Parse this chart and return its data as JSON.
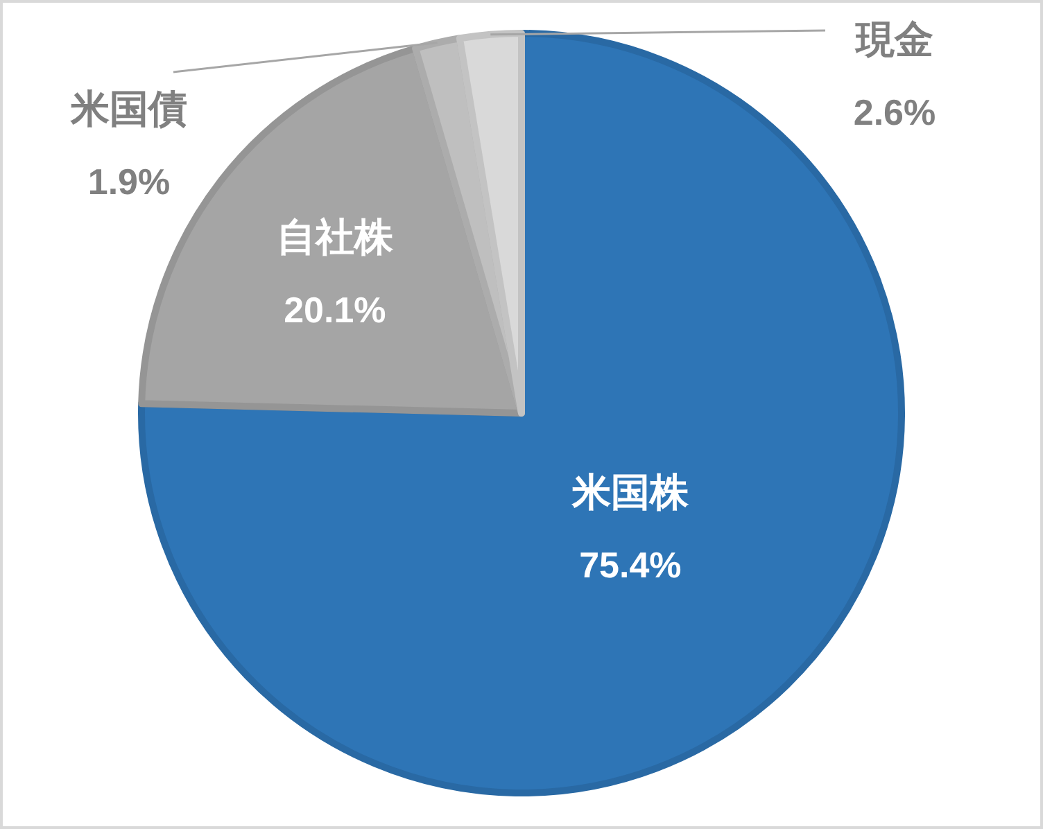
{
  "chart_data": {
    "type": "pie",
    "categories": [
      "米国株",
      "自社株",
      "米国債",
      "現金"
    ],
    "values": [
      75.4,
      20.1,
      1.9,
      2.6
    ],
    "colors": [
      "#2e75b6",
      "#a5a5a5",
      "#bfbfbf",
      "#d9d9d9"
    ],
    "value_labels": [
      "75.4%",
      "20.1%",
      "1.9%",
      "2.6%"
    ],
    "legend": false
  }
}
